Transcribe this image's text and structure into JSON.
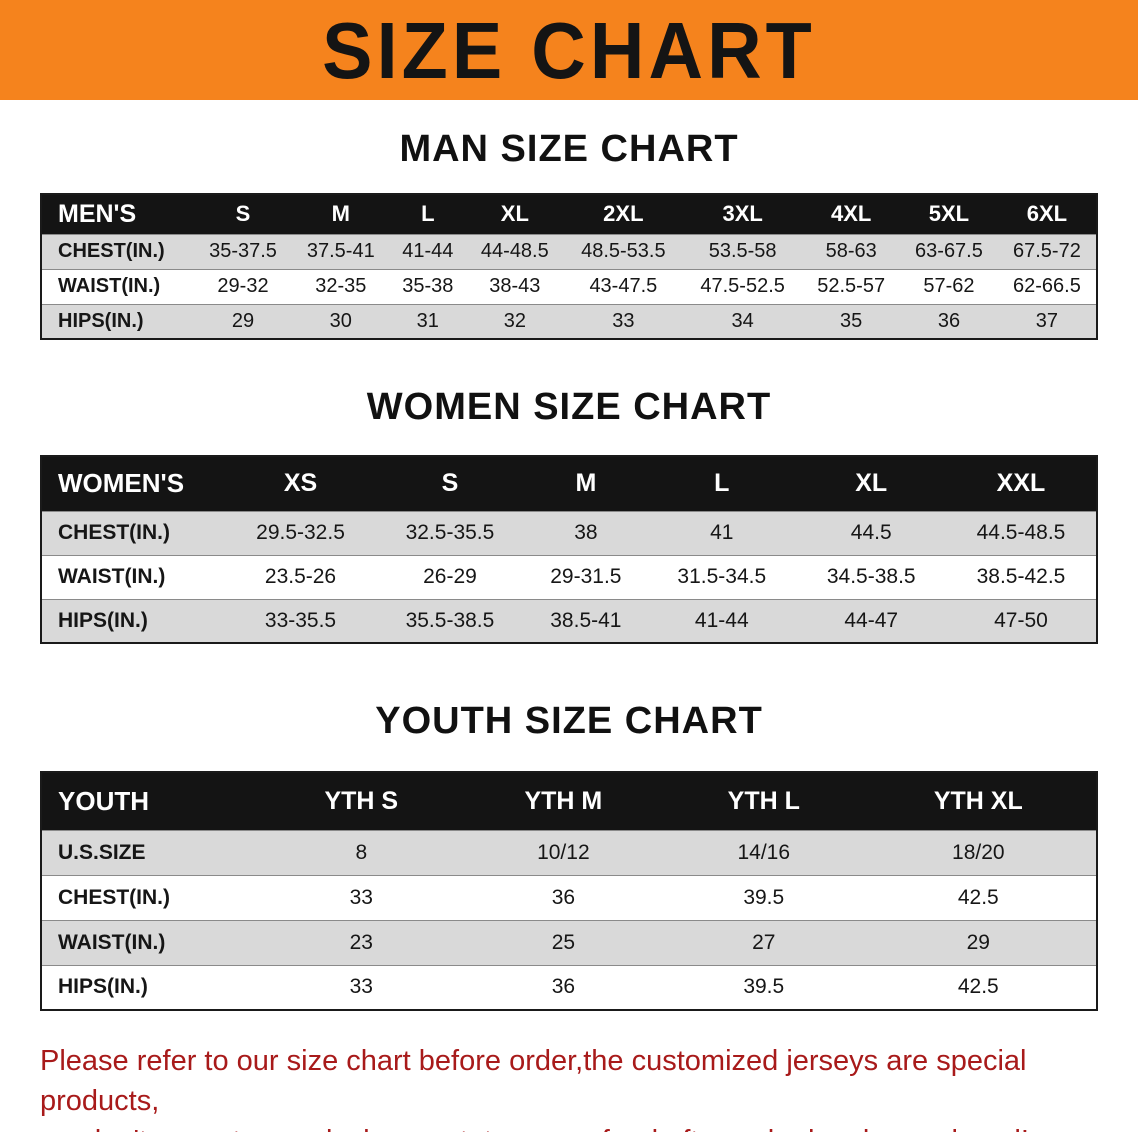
{
  "banner": {
    "title": "SIZE CHART",
    "background": "#f5831d"
  },
  "sections": [
    {
      "heading": "MAN SIZE CHART",
      "table": {
        "header": [
          "MEN'S",
          "S",
          "M",
          "L",
          "XL",
          "2XL",
          "3XL",
          "4XL",
          "5XL",
          "6XL"
        ],
        "rows": [
          [
            "CHEST(IN.)",
            "35-37.5",
            "37.5-41",
            "41-44",
            "44-48.5",
            "48.5-53.5",
            "53.5-58",
            "58-63",
            "63-67.5",
            "67.5-72"
          ],
          [
            "WAIST(IN.)",
            "29-32",
            "32-35",
            "35-38",
            "38-43",
            "43-47.5",
            "47.5-52.5",
            "52.5-57",
            "57-62",
            "62-66.5"
          ],
          [
            "HIPS(IN.)",
            "29",
            "30",
            "31",
            "32",
            "33",
            "34",
            "35",
            "36",
            "37"
          ]
        ]
      }
    },
    {
      "heading": "WOMEN SIZE CHART",
      "table": {
        "header": [
          "WOMEN'S",
          "XS",
          "S",
          "M",
          "L",
          "XL",
          "XXL"
        ],
        "rows": [
          [
            "CHEST(IN.)",
            "29.5-32.5",
            "32.5-35.5",
            "38",
            "41",
            "44.5",
            "44.5-48.5"
          ],
          [
            "WAIST(IN.)",
            "23.5-26",
            "26-29",
            "29-31.5",
            "31.5-34.5",
            "34.5-38.5",
            "38.5-42.5"
          ],
          [
            "HIPS(IN.)",
            "33-35.5",
            "35.5-38.5",
            "38.5-41",
            "41-44",
            "44-47",
            "47-50"
          ]
        ]
      }
    },
    {
      "heading": "YOUTH SIZE CHART",
      "table": {
        "header": [
          "YOUTH",
          "YTH S",
          "YTH M",
          "YTH L",
          "YTH XL"
        ],
        "rows": [
          [
            "U.S.SIZE",
            "8",
            "10/12",
            "14/16",
            "18/20"
          ],
          [
            "CHEST(IN.)",
            "33",
            "36",
            "39.5",
            "42.5"
          ],
          [
            "WAIST(IN.)",
            "23",
            "25",
            "27",
            "29"
          ],
          [
            "HIPS(IN.)",
            "33",
            "36",
            "39.5",
            "42.5"
          ]
        ]
      }
    }
  ],
  "footer": {
    "lines": [
      "Please refer to our size chart before order,the customized jerseys are special products,",
      "we don't accept cancel, change, teturn or refund after order has been placed!"
    ],
    "color": "#a81a1a"
  }
}
